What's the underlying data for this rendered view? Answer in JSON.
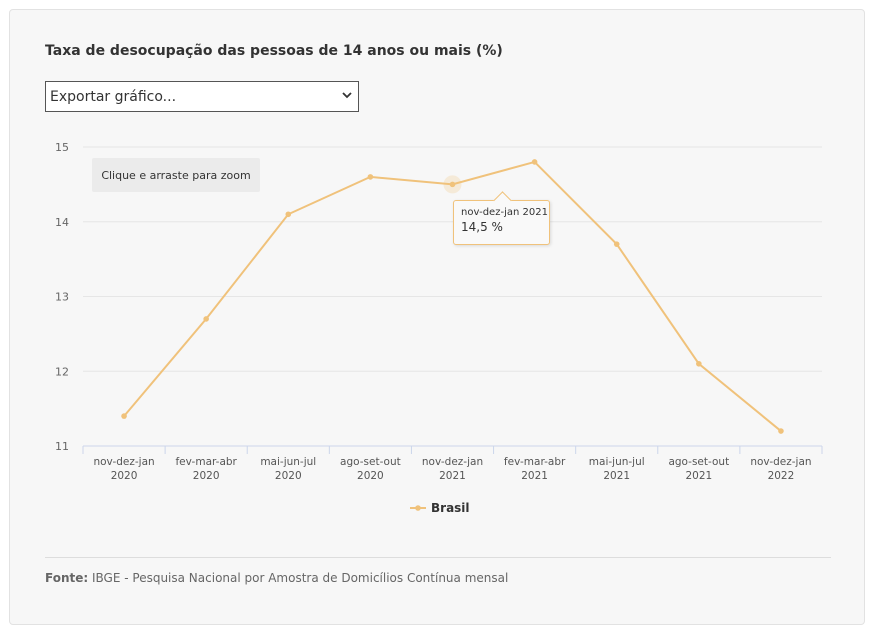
{
  "export": {
    "label": "Exportar gráfico..."
  },
  "zoom": {
    "label": "Clique e arraste para zoom"
  },
  "tooltip": {
    "category": "nov-dez-jan 2021",
    "value": "14,5 %"
  },
  "source": {
    "label": "Fonte:",
    "text": " IBGE - Pesquisa Nacional por Amostra de Domicílios Contínua mensal"
  },
  "icons": {
    "export_chevron": "chevron-down-icon"
  },
  "colors": {
    "series": "#f0c27b",
    "grid": "#e6e6e6",
    "axis": "#ccd6eb"
  },
  "chart_data": {
    "type": "line",
    "title": "Taxa de desocupação das pessoas de 14 anos ou mais (%)",
    "xlabel": "",
    "ylabel": "",
    "categories": [
      [
        "nov-dez-jan",
        "2020"
      ],
      [
        "fev-mar-abr",
        "2020"
      ],
      [
        "mai-jun-jul",
        "2020"
      ],
      [
        "ago-set-out",
        "2020"
      ],
      [
        "nov-dez-jan",
        "2021"
      ],
      [
        "fev-mar-abr",
        "2021"
      ],
      [
        "mai-jun-jul",
        "2021"
      ],
      [
        "ago-set-out",
        "2021"
      ],
      [
        "nov-dez-jan",
        "2022"
      ]
    ],
    "series": [
      {
        "name": "Brasil",
        "values": [
          11.4,
          12.7,
          14.1,
          14.6,
          14.5,
          14.8,
          13.7,
          12.1,
          11.2
        ]
      }
    ],
    "ylim": [
      11,
      15
    ],
    "yticks": [
      11,
      12,
      13,
      14,
      15
    ],
    "grid": true,
    "legend": "bottom-center",
    "highlighted_index": 4
  }
}
